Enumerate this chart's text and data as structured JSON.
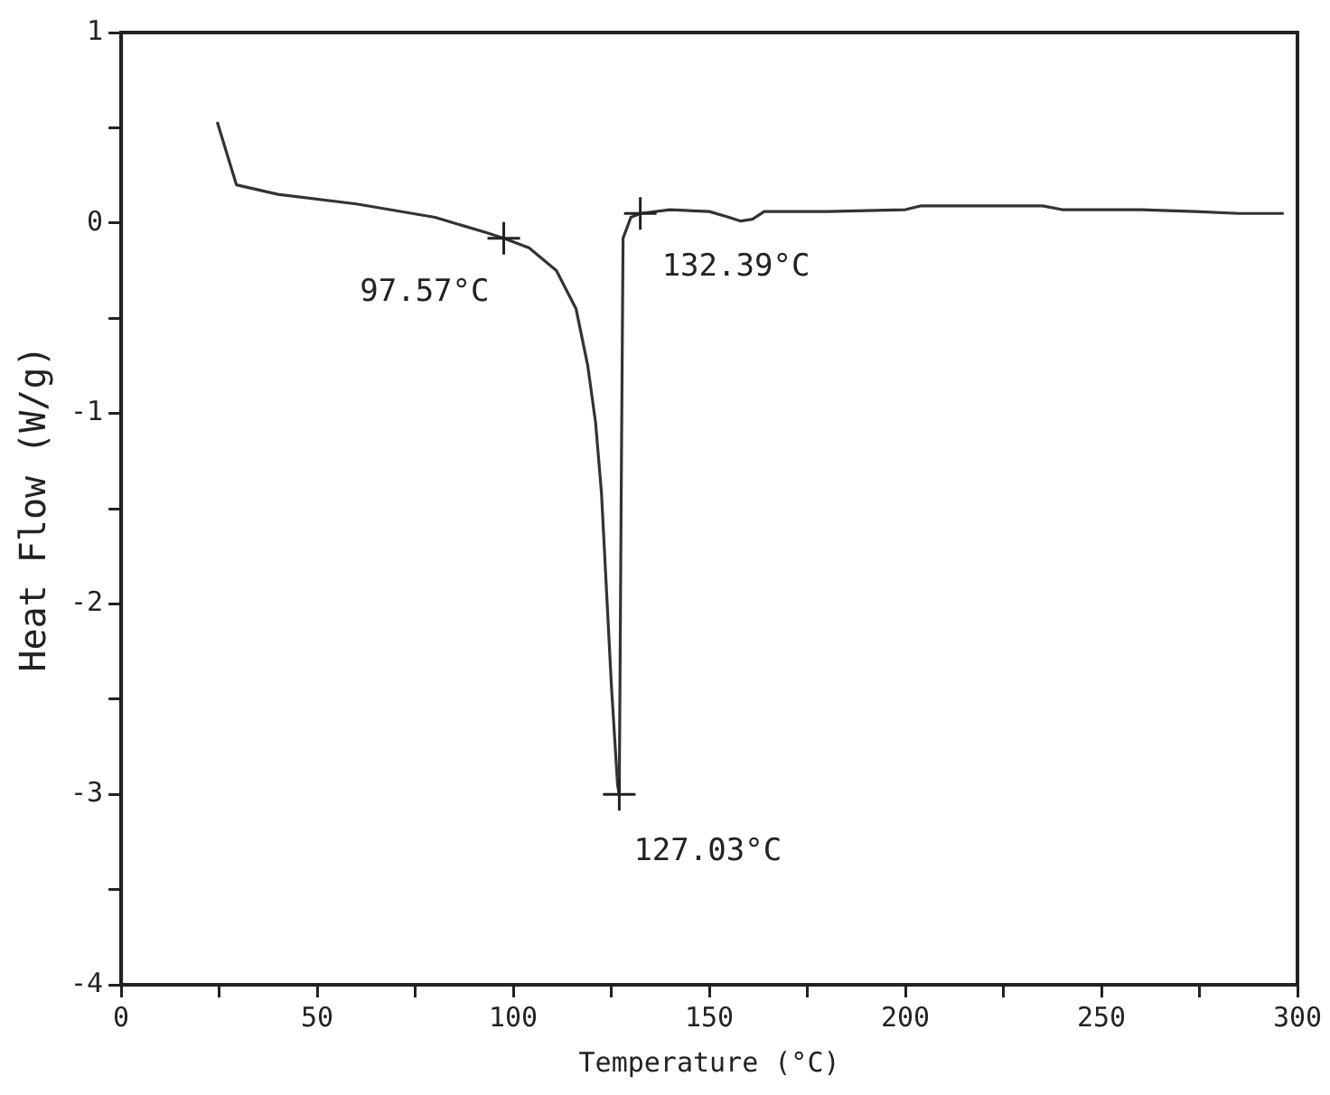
{
  "chart_data": {
    "type": "line",
    "xlabel": "Temperature (°C)",
    "ylabel": "Heat Flow (W/g)",
    "x": [
      24.5,
      29.4,
      40,
      60,
      80,
      93,
      97.57,
      104,
      111,
      116,
      119,
      121,
      122.5,
      125,
      126.6,
      127.03,
      127.5,
      128,
      130,
      132.39,
      140,
      150,
      155,
      158,
      161,
      164,
      180,
      200,
      204,
      220,
      235,
      240,
      260,
      274,
      285,
      296.5
    ],
    "series": [
      {
        "color": "#333333",
        "values": [
          0.53,
          0.2,
          0.15,
          0.1,
          0.03,
          -0.05,
          -0.08,
          -0.13,
          -0.25,
          -0.45,
          -0.75,
          -1.05,
          -1.42,
          -2.42,
          -2.95,
          -3.0,
          -1.5,
          -0.08,
          0.03,
          0.05,
          0.07,
          0.06,
          0.03,
          0.01,
          0.02,
          0.06,
          0.06,
          0.07,
          0.09,
          0.09,
          0.09,
          0.07,
          0.07,
          0.06,
          0.05,
          0.05
        ]
      }
    ],
    "xlim": [
      0,
      300
    ],
    "ylim": [
      -4,
      1
    ],
    "xticks": [
      0,
      {
        "value": 25,
        "label": null
      },
      50,
      {
        "value": 75,
        "label": null
      },
      100,
      {
        "value": 125,
        "label": null
      },
      150,
      {
        "value": 175,
        "label": null
      },
      200,
      {
        "value": 225,
        "label": null
      },
      250,
      {
        "value": 275,
        "label": null
      },
      300
    ],
    "yticks": [
      -4,
      {
        "value": -3.5,
        "label": null
      },
      -3,
      {
        "value": -2.5,
        "label": null
      },
      -2,
      {
        "value": -1.5,
        "label": null
      },
      -1,
      {
        "value": -0.5,
        "label": null
      },
      0,
      {
        "value": 0.5,
        "label": null
      },
      1
    ],
    "grid": false,
    "legend": false,
    "marker": "none",
    "line_style": "solid",
    "annotations": [
      {
        "text": "97.57°C",
        "x": 97.57,
        "y": -0.08
      },
      {
        "text": "132.39°C",
        "x": 132.39,
        "y": 0.05
      },
      {
        "text": "127.03°C",
        "x": 127.03,
        "y": -3.0
      }
    ]
  }
}
